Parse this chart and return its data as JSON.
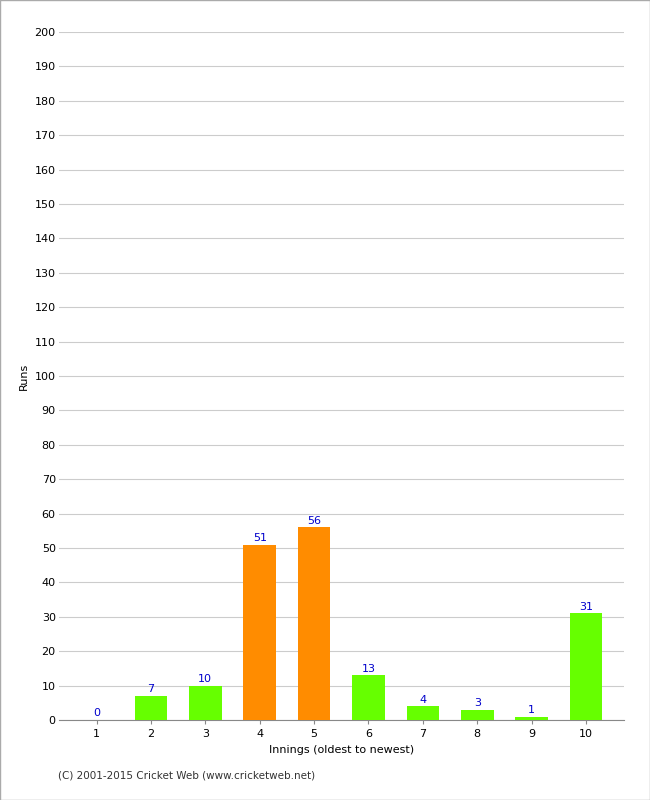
{
  "innings": [
    1,
    2,
    3,
    4,
    5,
    6,
    7,
    8,
    9,
    10
  ],
  "runs": [
    0,
    7,
    10,
    51,
    56,
    13,
    4,
    3,
    1,
    31
  ],
  "colors": [
    "#66ff00",
    "#66ff00",
    "#66ff00",
    "#ff8c00",
    "#ff8c00",
    "#66ff00",
    "#66ff00",
    "#66ff00",
    "#66ff00",
    "#66ff00"
  ],
  "xlabel": "Innings (oldest to newest)",
  "ylabel": "Runs",
  "ylim": [
    0,
    200
  ],
  "ytick_step": 10,
  "grid_color": "#cccccc",
  "background_color": "#ffffff",
  "label_color": "#0000cc",
  "label_fontsize": 8,
  "axis_fontsize": 8,
  "tick_fontsize": 8,
  "footer": "(C) 2001-2015 Cricket Web (www.cricketweb.net)",
  "border_color": "#aaaaaa"
}
